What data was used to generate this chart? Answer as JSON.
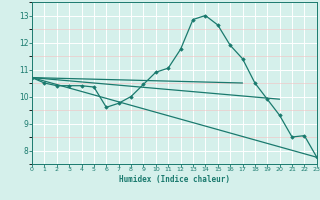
{
  "series": [
    {
      "x": [
        0,
        1,
        2,
        3,
        4,
        5,
        6,
        7,
        8,
        9,
        10,
        11,
        12,
        13,
        14,
        15,
        16,
        17,
        18,
        19,
        20,
        21,
        22,
        23
      ],
      "y": [
        10.7,
        10.5,
        10.4,
        10.4,
        10.4,
        10.35,
        9.6,
        9.75,
        10.0,
        10.45,
        10.9,
        11.05,
        11.75,
        12.85,
        13.0,
        12.65,
        11.9,
        11.4,
        10.5,
        9.9,
        9.3,
        8.5,
        8.55,
        7.75
      ],
      "color": "#1a7a6e",
      "linewidth": 0.9,
      "marker": "D",
      "markersize": 1.8
    },
    {
      "x": [
        0,
        17
      ],
      "y": [
        10.7,
        10.5
      ],
      "color": "#1a7a6e",
      "linewidth": 0.9,
      "marker": null,
      "markersize": 0
    },
    {
      "x": [
        0,
        20
      ],
      "y": [
        10.7,
        9.9
      ],
      "color": "#1a7a6e",
      "linewidth": 0.9,
      "marker": null,
      "markersize": 0
    },
    {
      "x": [
        0,
        23
      ],
      "y": [
        10.7,
        7.75
      ],
      "color": "#1a7a6e",
      "linewidth": 0.9,
      "marker": null,
      "markersize": 0
    }
  ],
  "xlabel": "Humidex (Indice chaleur)",
  "xlim": [
    0,
    23
  ],
  "ylim": [
    7.5,
    13.5
  ],
  "yticks": [
    8,
    9,
    10,
    11,
    12,
    13
  ],
  "xticks": [
    0,
    1,
    2,
    3,
    4,
    5,
    6,
    7,
    8,
    9,
    10,
    11,
    12,
    13,
    14,
    15,
    16,
    17,
    18,
    19,
    20,
    21,
    22,
    23
  ],
  "bg_color": "#d5f0eb",
  "grid_color": "#ffffff",
  "grid_minor_color": "#e8f8f5",
  "tick_color": "#1a7a6e",
  "label_color": "#1a7a6e",
  "spine_color": "#1a7a6e"
}
